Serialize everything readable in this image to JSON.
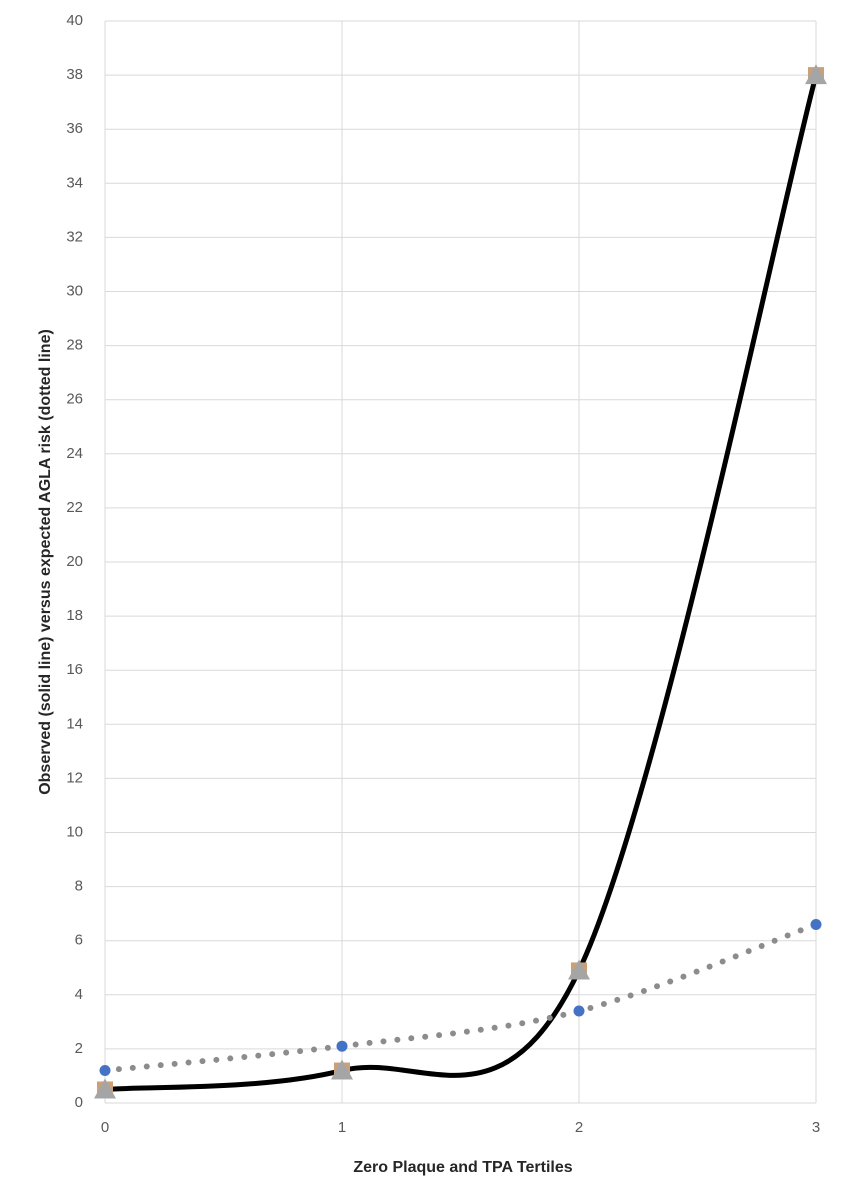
{
  "chart_data": {
    "type": "line",
    "x_label": "Zero Plaque and TPA Tertiles",
    "y_label": "Observed (solid line) versus expected AGLA risk (dotted line)",
    "x": [
      0,
      1,
      2,
      3
    ],
    "series": [
      {
        "color": "#000000",
        "line_style": "solid",
        "smooth": true,
        "values": [
          0.5,
          1.2,
          4.9,
          38
        ],
        "markers": [
          {
            "shape": "square",
            "color": "#c9a07a"
          },
          {
            "shape": "triangle",
            "color": "#a5a5a5"
          }
        ]
      },
      {
        "color": "#8c8c8c",
        "line_style": "dotted",
        "smooth": true,
        "values": [
          1.2,
          2.1,
          3.4,
          6.6
        ],
        "markers": [
          {
            "shape": "circle",
            "color": "#4472c4"
          }
        ]
      }
    ],
    "xlim": [
      0,
      3
    ],
    "xticks": [
      0,
      1,
      2,
      3
    ],
    "ylim": [
      0,
      40
    ],
    "yticks": [
      0,
      2,
      4,
      6,
      8,
      10,
      12,
      14,
      16,
      18,
      20,
      22,
      24,
      26,
      28,
      30,
      32,
      34,
      36,
      38,
      40
    ],
    "grid": true
  }
}
